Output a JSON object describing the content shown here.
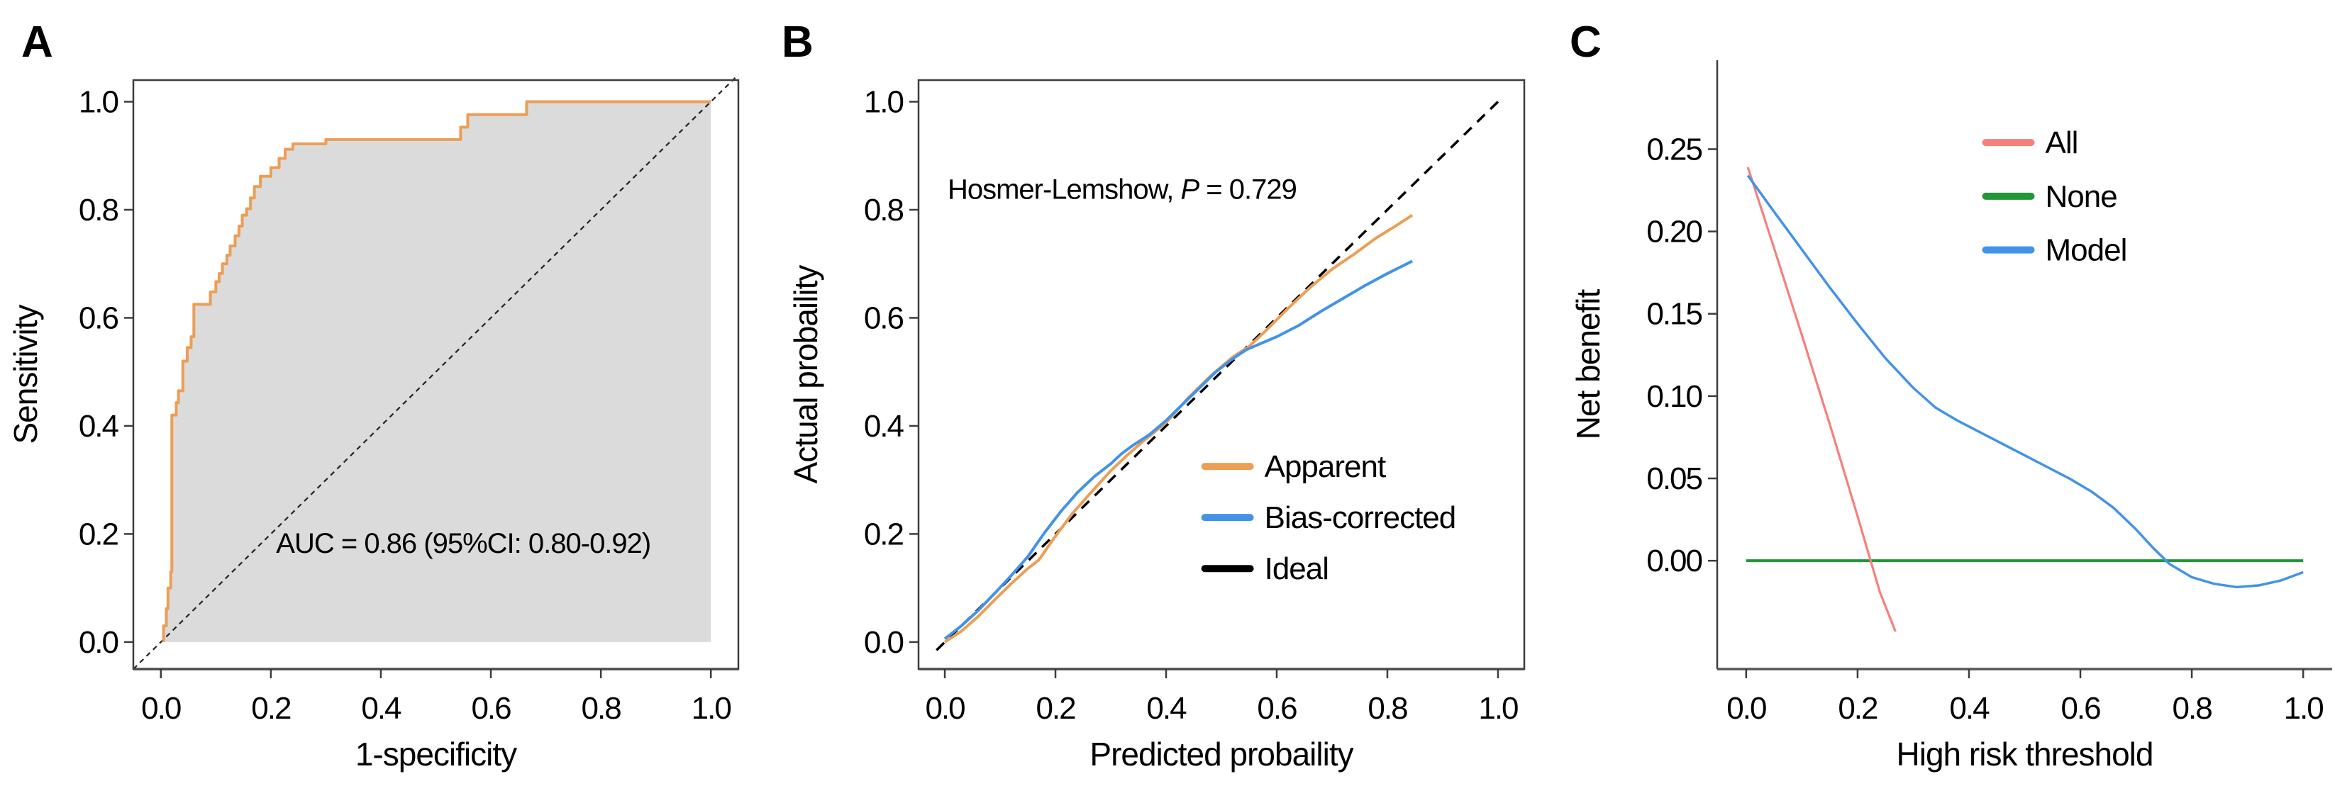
{
  "figure": {
    "background": "#ffffff"
  },
  "chart_data": [
    {
      "type": "line",
      "panel_label": "A",
      "xlabel": "1-specificity",
      "ylabel": "Sensitivity",
      "xlim": [
        -0.05,
        1.05
      ],
      "ylim": [
        -0.05,
        1.04
      ],
      "xticks": [
        0,
        0.2,
        0.4,
        0.6,
        0.8,
        1
      ],
      "xtick_labels": [
        "0.0",
        "0.2",
        "0.4",
        "0.6",
        "0.8",
        "1.0"
      ],
      "yticks": [
        0,
        0.2,
        0.4,
        0.6,
        0.8,
        1
      ],
      "ytick_labels": [
        "0.0",
        "0.2",
        "0.4",
        "0.6",
        "0.8",
        "1.0"
      ],
      "box": "full",
      "grid": false,
      "annotations": [
        {
          "x": 0.55,
          "y": 0.165,
          "anchor": "middle",
          "parts": [
            {
              "t": "AUC = 0.86 (95%CI: 0.80-0.92)"
            }
          ]
        }
      ],
      "series": [
        {
          "name": "chance-diagonal",
          "color": "#222222",
          "width": 2.2,
          "dash": "7 6",
          "points": [
            [
              -0.05,
              -0.05
            ],
            [
              1.05,
              1.05
            ]
          ]
        },
        {
          "name": "roc-curve",
          "color": "#EC9E55",
          "width": 4,
          "fill": "#DBDBDB",
          "fill_base": 0,
          "points": [
            [
              0.005,
              0
            ],
            [
              0.005,
              0.03
            ],
            [
              0.01,
              0.03
            ],
            [
              0.01,
              0.062
            ],
            [
              0.013,
              0.062
            ],
            [
              0.013,
              0.1
            ],
            [
              0.018,
              0.1
            ],
            [
              0.018,
              0.13
            ],
            [
              0.02,
              0.13
            ],
            [
              0.02,
              0.42
            ],
            [
              0.028,
              0.42
            ],
            [
              0.028,
              0.443
            ],
            [
              0.032,
              0.443
            ],
            [
              0.032,
              0.465
            ],
            [
              0.04,
              0.465
            ],
            [
              0.04,
              0.52
            ],
            [
              0.048,
              0.52
            ],
            [
              0.048,
              0.545
            ],
            [
              0.055,
              0.545
            ],
            [
              0.055,
              0.565
            ],
            [
              0.06,
              0.565
            ],
            [
              0.06,
              0.625
            ],
            [
              0.09,
              0.625
            ],
            [
              0.09,
              0.648
            ],
            [
              0.1,
              0.648
            ],
            [
              0.1,
              0.667
            ],
            [
              0.106,
              0.667
            ],
            [
              0.106,
              0.682
            ],
            [
              0.112,
              0.682
            ],
            [
              0.112,
              0.7
            ],
            [
              0.12,
              0.7
            ],
            [
              0.12,
              0.716
            ],
            [
              0.126,
              0.716
            ],
            [
              0.126,
              0.733
            ],
            [
              0.135,
              0.733
            ],
            [
              0.135,
              0.752
            ],
            [
              0.142,
              0.752
            ],
            [
              0.142,
              0.77
            ],
            [
              0.148,
              0.77
            ],
            [
              0.148,
              0.79
            ],
            [
              0.156,
              0.79
            ],
            [
              0.156,
              0.802
            ],
            [
              0.163,
              0.802
            ],
            [
              0.163,
              0.822
            ],
            [
              0.17,
              0.822
            ],
            [
              0.17,
              0.843
            ],
            [
              0.181,
              0.843
            ],
            [
              0.181,
              0.862
            ],
            [
              0.2,
              0.862
            ],
            [
              0.2,
              0.878
            ],
            [
              0.215,
              0.878
            ],
            [
              0.215,
              0.895
            ],
            [
              0.226,
              0.895
            ],
            [
              0.226,
              0.912
            ],
            [
              0.24,
              0.912
            ],
            [
              0.24,
              0.922
            ],
            [
              0.3,
              0.922
            ],
            [
              0.3,
              0.93
            ],
            [
              0.545,
              0.93
            ],
            [
              0.545,
              0.953
            ],
            [
              0.558,
              0.953
            ],
            [
              0.558,
              0.976
            ],
            [
              0.665,
              0.976
            ],
            [
              0.665,
              1
            ],
            [
              1,
              1
            ]
          ]
        }
      ]
    },
    {
      "type": "line",
      "panel_label": "B",
      "xlabel": "Predicted probaility",
      "ylabel": "Actual probaility",
      "xlim": [
        -0.0475,
        1.0475
      ],
      "ylim": [
        -0.05,
        1.04
      ],
      "xticks": [
        0,
        0.2,
        0.4,
        0.6,
        0.8,
        1
      ],
      "xtick_labels": [
        "0.0",
        "0.2",
        "0.4",
        "0.6",
        "0.8",
        "1.0"
      ],
      "yticks": [
        0,
        0.2,
        0.4,
        0.6,
        0.8,
        1
      ],
      "ytick_labels": [
        "0.0",
        "0.2",
        "0.4",
        "0.6",
        "0.8",
        "1.0"
      ],
      "box": "full",
      "grid": false,
      "annotations": [
        {
          "x": 0.005,
          "y": 0.82,
          "anchor": "start",
          "parts": [
            {
              "t": "Hosmer-Lemshow, "
            },
            {
              "t": "P",
              "i": true
            },
            {
              "t": " = 0.729"
            }
          ]
        }
      ],
      "legend": {
        "x": 0.47,
        "y": 0.325,
        "dy": 0.0945,
        "swatch": 64,
        "entries": [
          {
            "label": "Apparent",
            "color": "#EC9E55"
          },
          {
            "label": "Bias-corrected",
            "color": "#4293E8"
          },
          {
            "label": "Ideal",
            "color": "#000000"
          }
        ]
      },
      "series": [
        {
          "name": "ideal-line",
          "color": "#000000",
          "width": 3.5,
          "dash": "15 11",
          "points": [
            [
              -0.015,
              -0.015
            ],
            [
              1.0,
              1.0
            ]
          ]
        },
        {
          "name": "apparent-curve",
          "color": "#EC9E55",
          "width": 4,
          "points": [
            [
              0,
              0
            ],
            [
              0.03,
              0.02
            ],
            [
              0.06,
              0.047
            ],
            [
              0.09,
              0.078
            ],
            [
              0.12,
              0.108
            ],
            [
              0.15,
              0.136
            ],
            [
              0.17,
              0.152
            ],
            [
              0.2,
              0.196
            ],
            [
              0.23,
              0.237
            ],
            [
              0.26,
              0.272
            ],
            [
              0.3,
              0.317
            ],
            [
              0.33,
              0.346
            ],
            [
              0.36,
              0.373
            ],
            [
              0.4,
              0.406
            ],
            [
              0.44,
              0.452
            ],
            [
              0.48,
              0.492
            ],
            [
              0.52,
              0.527
            ],
            [
              0.55,
              0.547
            ],
            [
              0.58,
              0.576
            ],
            [
              0.62,
              0.617
            ],
            [
              0.66,
              0.656
            ],
            [
              0.7,
              0.69
            ],
            [
              0.74,
              0.718
            ],
            [
              0.78,
              0.748
            ],
            [
              0.815,
              0.77
            ],
            [
              0.845,
              0.79
            ]
          ]
        },
        {
          "name": "bias-corrected-curve",
          "color": "#4293E8",
          "width": 4,
          "points": [
            [
              0,
              0.006
            ],
            [
              0.03,
              0.03
            ],
            [
              0.06,
              0.058
            ],
            [
              0.09,
              0.09
            ],
            [
              0.12,
              0.123
            ],
            [
              0.15,
              0.158
            ],
            [
              0.18,
              0.202
            ],
            [
              0.21,
              0.242
            ],
            [
              0.24,
              0.277
            ],
            [
              0.27,
              0.306
            ],
            [
              0.3,
              0.33
            ],
            [
              0.32,
              0.349
            ],
            [
              0.34,
              0.364
            ],
            [
              0.37,
              0.384
            ],
            [
              0.4,
              0.41
            ],
            [
              0.43,
              0.44
            ],
            [
              0.46,
              0.47
            ],
            [
              0.49,
              0.5
            ],
            [
              0.52,
              0.524
            ],
            [
              0.545,
              0.541
            ],
            [
              0.57,
              0.552
            ],
            [
              0.6,
              0.565
            ],
            [
              0.64,
              0.586
            ],
            [
              0.68,
              0.612
            ],
            [
              0.72,
              0.636
            ],
            [
              0.76,
              0.66
            ],
            [
              0.8,
              0.682
            ],
            [
              0.845,
              0.705
            ]
          ]
        }
      ]
    },
    {
      "type": "line",
      "panel_label": "C",
      "xlabel": "High risk threshold",
      "ylabel": "Net benefit",
      "xlim": [
        -0.052,
        1.052
      ],
      "ylim": [
        -0.0658,
        0.304
      ],
      "xticks": [
        0,
        0.2,
        0.4,
        0.6,
        0.8,
        1
      ],
      "xtick_labels": [
        "0.0",
        "0.2",
        "0.4",
        "0.6",
        "0.8",
        "1.0"
      ],
      "yticks": [
        0,
        0.05,
        0.1,
        0.15,
        0.2,
        0.25
      ],
      "ytick_labels": [
        "0.00",
        "0.05",
        "0.10",
        "0.15",
        "0.20",
        "0.25"
      ],
      "box": "left-bottom",
      "grid": false,
      "annotations": [],
      "legend": {
        "x": 0.43,
        "y": 0.254,
        "dy": 0.0326,
        "swatch": 64,
        "entries": [
          {
            "label": "All",
            "color": "#F5807B"
          },
          {
            "label": "None",
            "color": "#219738"
          },
          {
            "label": "Model",
            "color": "#4293E8"
          }
        ]
      },
      "series": [
        {
          "name": "none-line",
          "color": "#219738",
          "width": 4,
          "points": [
            [
              0,
              0
            ],
            [
              1,
              0
            ]
          ]
        },
        {
          "name": "all-line",
          "color": "#F5807B",
          "width": 3.2,
          "points": [
            [
              0.003,
              0.239
            ],
            [
              0.05,
              0.19
            ],
            [
              0.1,
              0.137
            ],
            [
              0.15,
              0.083
            ],
            [
              0.2,
              0.027
            ],
            [
              0.24,
              -0.019
            ],
            [
              0.268,
              -0.043
            ]
          ]
        },
        {
          "name": "model-line",
          "color": "#4293E8",
          "width": 3.5,
          "points": [
            [
              0.003,
              0.234
            ],
            [
              0.05,
              0.212
            ],
            [
              0.1,
              0.189
            ],
            [
              0.15,
              0.166
            ],
            [
              0.2,
              0.144
            ],
            [
              0.25,
              0.123
            ],
            [
              0.3,
              0.105
            ],
            [
              0.34,
              0.093
            ],
            [
              0.38,
              0.085
            ],
            [
              0.42,
              0.078
            ],
            [
              0.46,
              0.071
            ],
            [
              0.5,
              0.064
            ],
            [
              0.54,
              0.057
            ],
            [
              0.58,
              0.05
            ],
            [
              0.62,
              0.042
            ],
            [
              0.66,
              0.032
            ],
            [
              0.7,
              0.019
            ],
            [
              0.73,
              0.008
            ],
            [
              0.76,
              -0.002
            ],
            [
              0.8,
              -0.01
            ],
            [
              0.84,
              -0.014
            ],
            [
              0.88,
              -0.016
            ],
            [
              0.92,
              -0.015
            ],
            [
              0.96,
              -0.012
            ],
            [
              1,
              -0.007
            ]
          ]
        }
      ]
    }
  ]
}
